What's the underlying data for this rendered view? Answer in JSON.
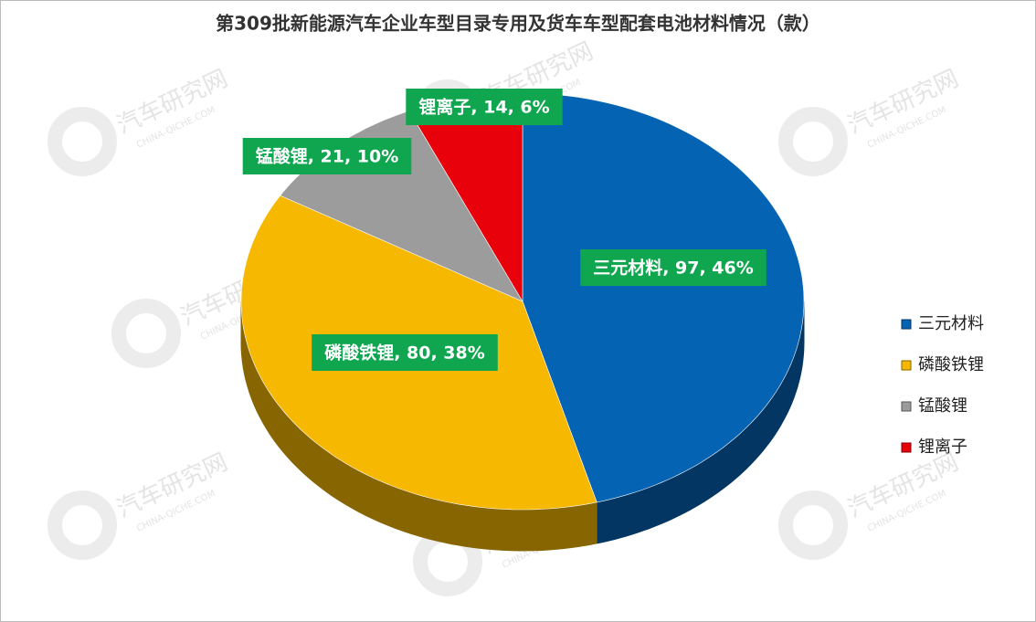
{
  "chart_data": {
    "type": "pie3d",
    "title": "第309批新能源汽车企业车型目录专用及货车车型配套电池材料情况（款）",
    "categories": [
      "三元材料",
      "磷酸铁锂",
      "锰酸锂",
      "锂离子"
    ],
    "values": [
      97,
      80,
      21,
      14
    ],
    "value_labels": [
      "三元材料, 97, 46%",
      "磷酸铁锂, 80, 38%",
      "锰酸锂, 21, 10%",
      "锂离子, 14, 6%"
    ],
    "colors": [
      "#0563b3",
      "#f6b800",
      "#9c9c9c",
      "#e8000a"
    ],
    "legend": "right",
    "watermark": {
      "name": "汽车研究网",
      "site": "CHINA-QICHE.COM"
    }
  }
}
